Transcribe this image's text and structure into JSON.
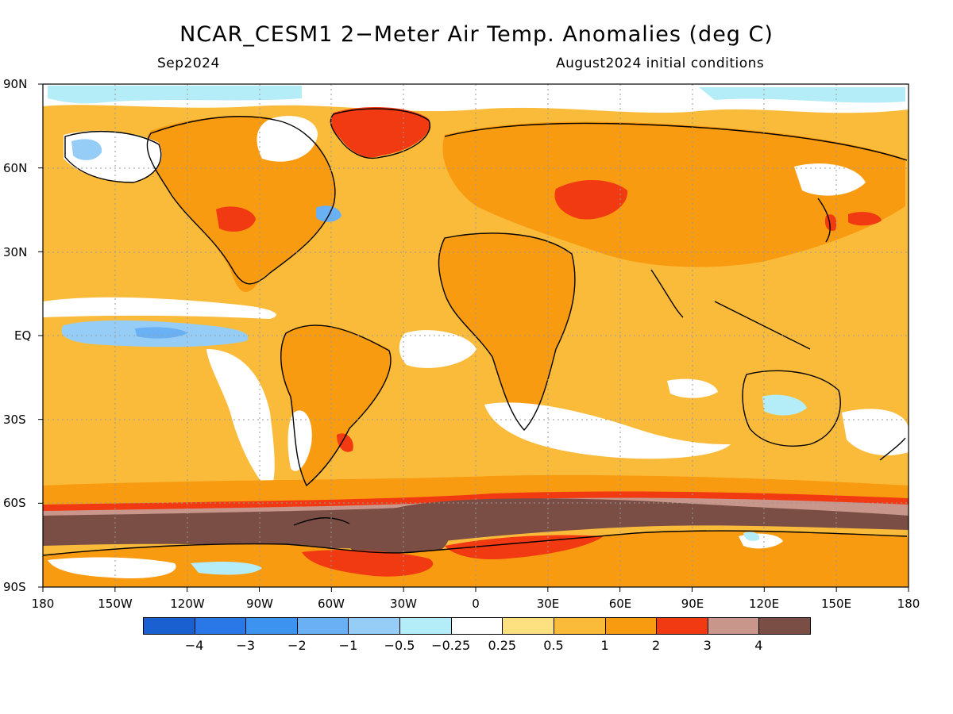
{
  "title": "NCAR_CESM1 2−Meter Air Temp. Anomalies (deg C)",
  "subtitle_left": "Sep2024",
  "subtitle_right": "August2024 initial conditions",
  "lat_labels": [
    "90N",
    "60N",
    "30N",
    "EQ",
    "30S",
    "60S",
    "90S"
  ],
  "lon_labels": [
    "180",
    "150W",
    "120W",
    "90W",
    "60W",
    "30W",
    "0",
    "30E",
    "60E",
    "90E",
    "120E",
    "150E",
    "180"
  ],
  "colorbar": {
    "colors": [
      "#1a60d0",
      "#2a78e8",
      "#3d94f0",
      "#6ab0f5",
      "#96cdf7",
      "#b4ecf7",
      "#ffffff",
      "#fde080",
      "#fbbb3a",
      "#f89b10",
      "#f23a12",
      "#c8968a",
      "#7a4e44"
    ],
    "labels": [
      "−4",
      "−3",
      "−2",
      "−1",
      "−0.5",
      "−0.25",
      "0.25",
      "0.5",
      "1",
      "2",
      "3",
      "4"
    ]
  },
  "map_colors": {
    "ocean_base": "#fbbb3a",
    "warm_mid": "#f89b10",
    "light_warm": "#fde080",
    "neutral": "#ffffff",
    "cool_light": "#b4ecf7",
    "cool": "#96cdf7",
    "cool_mid": "#6ab0f5",
    "hot": "#f23a12",
    "very_hot": "#c8968a",
    "extreme": "#7a4e44",
    "coast": "#000000",
    "grid": "#9a9a9a"
  }
}
